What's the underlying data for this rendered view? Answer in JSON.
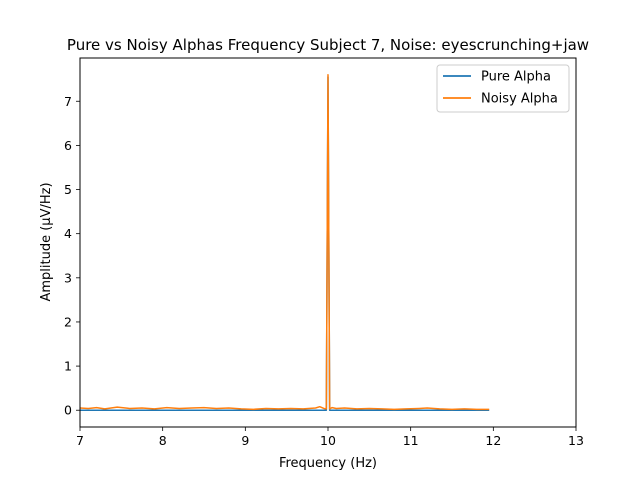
{
  "chart_data": {
    "type": "line",
    "title": "Pure vs Noisy Alphas Frequency Subject 7, Noise: eyescrunching+jaw",
    "xlabel": "Frequency (Hz)",
    "ylabel": "Amplitude (μV/Hz)",
    "xlim": [
      7,
      13
    ],
    "ylim": [
      -0.38,
      7.98
    ],
    "x_ticks": [
      7,
      8,
      9,
      10,
      11,
      12,
      13
    ],
    "y_ticks": [
      0,
      1,
      2,
      3,
      4,
      5,
      6,
      7
    ],
    "grid": false,
    "legend_position": "top-right",
    "series": [
      {
        "name": "Pure Alpha",
        "color": "#1f77b4",
        "x": [
          7.0,
          7.5,
          8.0,
          8.5,
          9.0,
          9.5,
          9.95,
          9.98,
          10.0,
          10.02,
          10.05,
          10.5,
          11.0,
          11.5,
          11.95
        ],
        "y": [
          0.0,
          0.0,
          0.0,
          0.0,
          0.0,
          0.0,
          0.0,
          0.0,
          7.55,
          0.0,
          0.0,
          0.0,
          0.0,
          0.0,
          0.0
        ]
      },
      {
        "name": "Noisy Alpha",
        "color": "#ff7f0e",
        "x": [
          7.0,
          7.1,
          7.2,
          7.3,
          7.45,
          7.6,
          7.75,
          7.9,
          8.05,
          8.2,
          8.35,
          8.5,
          8.65,
          8.8,
          8.95,
          9.1,
          9.25,
          9.4,
          9.55,
          9.7,
          9.85,
          9.9,
          9.95,
          9.98,
          10.0,
          10.02,
          10.05,
          10.1,
          10.2,
          10.35,
          10.5,
          10.65,
          10.8,
          10.95,
          11.1,
          11.2,
          11.35,
          11.5,
          11.65,
          11.8,
          11.95
        ],
        "y": [
          0.05,
          0.04,
          0.06,
          0.03,
          0.07,
          0.04,
          0.05,
          0.03,
          0.06,
          0.04,
          0.05,
          0.06,
          0.04,
          0.05,
          0.03,
          0.02,
          0.04,
          0.03,
          0.04,
          0.03,
          0.05,
          0.08,
          0.04,
          0.03,
          7.6,
          0.03,
          0.06,
          0.04,
          0.05,
          0.03,
          0.04,
          0.03,
          0.02,
          0.03,
          0.04,
          0.05,
          0.03,
          0.02,
          0.03,
          0.02,
          0.02
        ]
      }
    ]
  }
}
